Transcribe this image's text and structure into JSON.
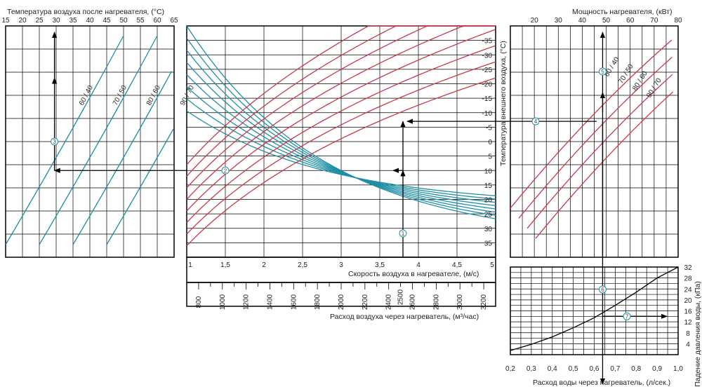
{
  "colors": {
    "blue": "#1f8fa6",
    "red": "#c8394a",
    "grid": "#000000",
    "arrow": "#000000"
  },
  "titles": {
    "outlet_temp": "Температура воздуха после нагревателя, (°С)",
    "outside_temp": "Температура внешнего воздуха, (°С)",
    "velocity": "Скорость воздуха в нагревателе, (м/с)",
    "airflow": "Расход воздуха через нагреватель, (м³/час)",
    "power": "Мощность нагревателя, (кВт)",
    "pressure_drop": "Падение давления воды, (кПа)",
    "water_flow": "Расход воды через нагреватель, (л/сек.)"
  },
  "chart_data": [
    {
      "type": "line",
      "panel": "outlet-temperature",
      "xlabel": "Температура воздуха после нагревателя, (°С)",
      "xlim": [
        15,
        65
      ],
      "x_ticks": [
        "15",
        "20",
        "25",
        "30",
        "35",
        "40",
        "45",
        "50",
        "55",
        "60",
        "65"
      ],
      "series": [
        {
          "name": "60 / 40",
          "color": "blue"
        },
        {
          "name": "70 / 50",
          "color": "blue"
        },
        {
          "name": "80 / 60",
          "color": "blue"
        },
        {
          "name": "90 / 70",
          "color": "blue"
        }
      ],
      "markers": [
        {
          "id": "3",
          "x": 29.5
        }
      ]
    },
    {
      "type": "line",
      "panel": "velocity",
      "xlabel": "Скорость воздуха в нагревателе, (м/с)",
      "ylabel": "Температура внешнего воздуха, (°С)",
      "xlim": [
        1,
        5
      ],
      "ylim": [
        -40,
        40
      ],
      "x_ticks": [
        "1",
        "1,5",
        "2",
        "2,5",
        "3",
        "3,5",
        "4",
        "4,5",
        "5"
      ],
      "y_ticks_right": [
        "-35",
        "-30",
        "-25",
        "-20",
        "-15",
        "-10",
        "-5",
        "0",
        "5",
        "10",
        "15",
        "20",
        "25",
        "30",
        "35"
      ],
      "y_ticks_values": [
        35,
        30,
        25,
        20,
        15,
        10,
        5,
        0,
        -5,
        -10,
        -15,
        -20,
        -25,
        -30,
        -35
      ],
      "airflow_ticks": [
        "800",
        "1000",
        "1200",
        "1400",
        "1600",
        "1800",
        "2000",
        "2200",
        "2400",
        "2600",
        "2800",
        "3000",
        "3200"
      ],
      "airflow_marker": "2500",
      "markers": [
        {
          "id": "1",
          "x": 3.8
        },
        {
          "id": "2",
          "x": 1.5
        }
      ]
    },
    {
      "type": "line",
      "panel": "heater-power",
      "xlabel": "Мощность нагревателя, (кВт)",
      "xlim": [
        10,
        80
      ],
      "x_ticks": [
        "20",
        "30",
        "40",
        "50",
        "60",
        "70",
        "80"
      ],
      "series": [
        {
          "name": "60 / 40",
          "color": "red"
        },
        {
          "name": "70 / 50",
          "color": "red"
        },
        {
          "name": "80 / 60",
          "color": "red"
        },
        {
          "name": "90 / 70",
          "color": "red"
        }
      ],
      "markers": [
        {
          "id": "4",
          "x": 25
        },
        {
          "id": "5",
          "x": 48.5
        }
      ]
    },
    {
      "type": "line",
      "panel": "pressure-drop",
      "xlabel": "Расход воды через нагреватель, (л/сек.)",
      "ylabel": "Падение давления воды, (кПа)",
      "xlim": [
        0.2,
        1.0
      ],
      "ylim": [
        0,
        32
      ],
      "x_ticks": [
        "0,2",
        "0,3",
        "0,4",
        "0,5",
        "0,6",
        "0,7",
        "0,8",
        "0,9",
        "1,0"
      ],
      "y_ticks": [
        "4",
        "8",
        "12",
        "16",
        "20",
        "24",
        "28",
        "32"
      ],
      "curve": {
        "x": [
          0.2,
          0.3,
          0.4,
          0.5,
          0.6,
          0.7,
          0.8,
          0.9,
          1.0
        ],
        "y": [
          1.5,
          3.8,
          6.5,
          9.8,
          13.5,
          18,
          22.8,
          28,
          33
        ]
      },
      "markers": [
        {
          "id": "6",
          "x": 0.6
        },
        {
          "id": "7",
          "x": 0.75
        }
      ]
    }
  ]
}
